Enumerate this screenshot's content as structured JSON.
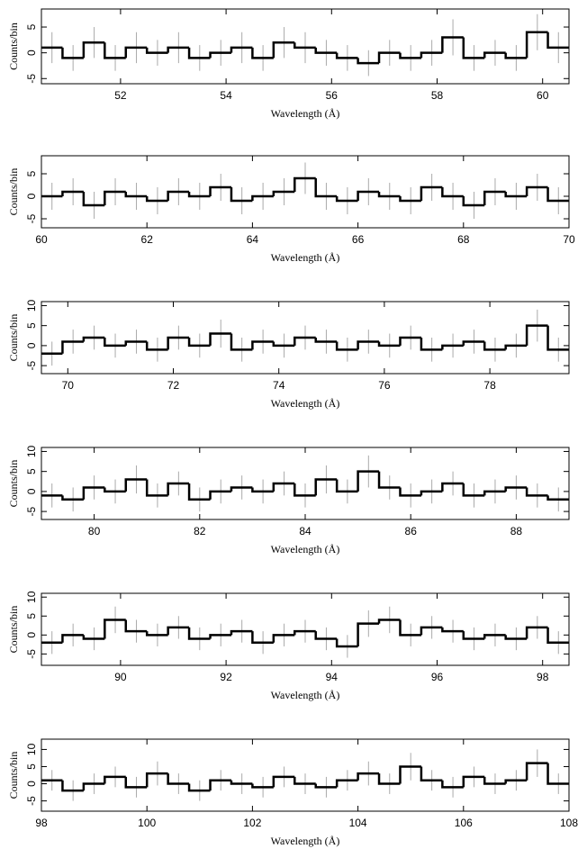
{
  "chart_data": [
    {
      "type": "histogram",
      "xlabel": "Wavelength (Å)",
      "ylabel": "Counts/bin",
      "color": "#000000",
      "error_color": "#aaaaaa",
      "xlim": [
        50.5,
        60.5
      ],
      "ylim": [
        -6,
        8.5
      ],
      "xticks": [
        52,
        54,
        56,
        58,
        60
      ],
      "yticks": [
        -5,
        0,
        5
      ],
      "bins": [
        50.5,
        50.9,
        51.3,
        51.7,
        52.1,
        52.5,
        52.9,
        53.3,
        53.7,
        54.1,
        54.5,
        54.9,
        55.3,
        55.7,
        56.1,
        56.5,
        56.9,
        57.3,
        57.7,
        58.1,
        58.5,
        58.9,
        59.3,
        59.7,
        60.1,
        60.5
      ],
      "values": [
        1,
        -1,
        2,
        -1,
        1,
        0,
        1,
        -1,
        0,
        1,
        -1,
        2,
        1,
        0,
        -1,
        -2,
        0,
        -1,
        0,
        3,
        -1,
        0,
        -1,
        4,
        1
      ],
      "errors": [
        3,
        2.5,
        3,
        2.5,
        3,
        2.5,
        3,
        2.5,
        2.5,
        3,
        2.5,
        3,
        3,
        2.5,
        2.5,
        2.5,
        2.5,
        2.5,
        2.5,
        3.5,
        2.5,
        2.5,
        2.5,
        3.5,
        3
      ]
    },
    {
      "type": "histogram",
      "xlabel": "Wavelength (Å)",
      "ylabel": "Counts/bin",
      "color": "#000000",
      "error_color": "#aaaaaa",
      "xlim": [
        60,
        70
      ],
      "ylim": [
        -7,
        9
      ],
      "xticks": [
        60,
        62,
        64,
        66,
        68,
        70
      ],
      "yticks": [
        -5,
        0,
        5
      ],
      "bins": [
        60,
        60.4,
        60.8,
        61.2,
        61.6,
        62,
        62.4,
        62.8,
        63.2,
        63.6,
        64,
        64.4,
        64.8,
        65.2,
        65.6,
        66,
        66.4,
        66.8,
        67.2,
        67.6,
        68,
        68.4,
        68.8,
        69.2,
        69.6,
        70
      ],
      "values": [
        0,
        1,
        -2,
        1,
        0,
        -1,
        1,
        0,
        2,
        -1,
        0,
        1,
        4,
        0,
        -1,
        1,
        0,
        -1,
        2,
        0,
        -2,
        1,
        0,
        2,
        -1
      ],
      "errors": [
        3,
        3,
        3,
        3,
        3,
        3,
        3,
        3,
        3,
        3,
        3,
        3,
        3.5,
        3,
        3,
        3,
        3,
        3,
        3,
        3,
        3,
        3,
        3,
        3,
        3
      ]
    },
    {
      "type": "histogram",
      "xlabel": "Wavelength (Å)",
      "ylabel": "Counts/bin",
      "color": "#000000",
      "error_color": "#aaaaaa",
      "xlim": [
        69.5,
        79.5
      ],
      "ylim": [
        -7,
        11
      ],
      "xticks": [
        70,
        72,
        74,
        76,
        78
      ],
      "yticks": [
        -5,
        0,
        5,
        10
      ],
      "bins": [
        69.5,
        69.9,
        70.3,
        70.7,
        71.1,
        71.5,
        71.9,
        72.3,
        72.7,
        73.1,
        73.5,
        73.9,
        74.3,
        74.7,
        75.1,
        75.5,
        75.9,
        76.3,
        76.7,
        77.1,
        77.5,
        77.9,
        78.3,
        78.7,
        79.1,
        79.5
      ],
      "values": [
        -2,
        1,
        2,
        0,
        1,
        -1,
        2,
        0,
        3,
        -1,
        1,
        0,
        2,
        1,
        -1,
        1,
        0,
        2,
        -1,
        0,
        1,
        -1,
        0,
        5,
        -1
      ],
      "errors": [
        3,
        3,
        3,
        3,
        3,
        3,
        3,
        3,
        3.5,
        3,
        3,
        3,
        3,
        3,
        3,
        3,
        3,
        3,
        3,
        3,
        3,
        3,
        3,
        4,
        3
      ]
    },
    {
      "type": "histogram",
      "xlabel": "Wavelength (Å)",
      "ylabel": "Counts/bin",
      "color": "#000000",
      "error_color": "#aaaaaa",
      "xlim": [
        79,
        89
      ],
      "ylim": [
        -7,
        11
      ],
      "xticks": [
        80,
        82,
        84,
        86,
        88
      ],
      "yticks": [
        -5,
        0,
        5,
        10
      ],
      "bins": [
        79,
        79.4,
        79.8,
        80.2,
        80.6,
        81,
        81.4,
        81.8,
        82.2,
        82.6,
        83,
        83.4,
        83.8,
        84.2,
        84.6,
        85,
        85.4,
        85.8,
        86.2,
        86.6,
        87,
        87.4,
        87.8,
        88.2,
        88.6,
        89
      ],
      "values": [
        -1,
        -2,
        1,
        0,
        3,
        -1,
        2,
        -2,
        0,
        1,
        0,
        2,
        -1,
        3,
        0,
        5,
        1,
        -1,
        0,
        2,
        -1,
        0,
        1,
        -1,
        -2
      ],
      "errors": [
        3,
        3,
        3,
        3,
        3.5,
        3,
        3,
        3,
        3,
        3,
        3,
        3,
        3,
        3.5,
        3,
        4,
        3,
        3,
        3,
        3,
        3,
        3,
        3,
        3,
        3
      ]
    },
    {
      "type": "histogram",
      "xlabel": "Wavelength (Å)",
      "ylabel": "Counts/bin",
      "color": "#000000",
      "error_color": "#aaaaaa",
      "xlim": [
        88.5,
        98.5
      ],
      "ylim": [
        -8,
        11
      ],
      "xticks": [
        90,
        92,
        94,
        96,
        98
      ],
      "yticks": [
        -5,
        0,
        5,
        10
      ],
      "bins": [
        88.5,
        88.9,
        89.3,
        89.7,
        90.1,
        90.5,
        90.9,
        91.3,
        91.7,
        92.1,
        92.5,
        92.9,
        93.3,
        93.7,
        94.1,
        94.5,
        94.9,
        95.3,
        95.7,
        96.1,
        96.5,
        96.9,
        97.3,
        97.7,
        98.1,
        98.5
      ],
      "values": [
        -2,
        0,
        -1,
        4,
        1,
        0,
        2,
        -1,
        0,
        1,
        -2,
        0,
        1,
        -1,
        -3,
        3,
        4,
        0,
        2,
        1,
        -1,
        0,
        -1,
        2,
        -2
      ],
      "errors": [
        3,
        3,
        3,
        3.5,
        3,
        3,
        3,
        3,
        3,
        3,
        3,
        3,
        3,
        3,
        3,
        3.5,
        3.5,
        3,
        3,
        3,
        3,
        3,
        3,
        3,
        3
      ]
    },
    {
      "type": "histogram",
      "xlabel": "Wavelength (Å)",
      "ylabel": "Counts/bin",
      "color": "#000000",
      "error_color": "#aaaaaa",
      "xlim": [
        98,
        108
      ],
      "ylim": [
        -8,
        13
      ],
      "xticks": [
        98,
        100,
        102,
        104,
        106,
        108
      ],
      "yticks": [
        -5,
        0,
        5,
        10
      ],
      "bins": [
        98,
        98.4,
        98.8,
        99.2,
        99.6,
        100,
        100.4,
        100.8,
        101.2,
        101.6,
        102,
        102.4,
        102.8,
        103.2,
        103.6,
        104,
        104.4,
        104.8,
        105.2,
        105.6,
        106,
        106.4,
        106.8,
        107.2,
        107.6,
        108
      ],
      "values": [
        1,
        -2,
        0,
        2,
        -1,
        3,
        0,
        -2,
        1,
        0,
        -1,
        2,
        0,
        -1,
        1,
        3,
        0,
        5,
        1,
        -1,
        2,
        0,
        1,
        6,
        0
      ],
      "errors": [
        3,
        3,
        3,
        3,
        3,
        3.5,
        3,
        3,
        3,
        3,
        3,
        3,
        3,
        3,
        3,
        3.5,
        3,
        4,
        3,
        3,
        3,
        3,
        3,
        4,
        3
      ]
    }
  ]
}
